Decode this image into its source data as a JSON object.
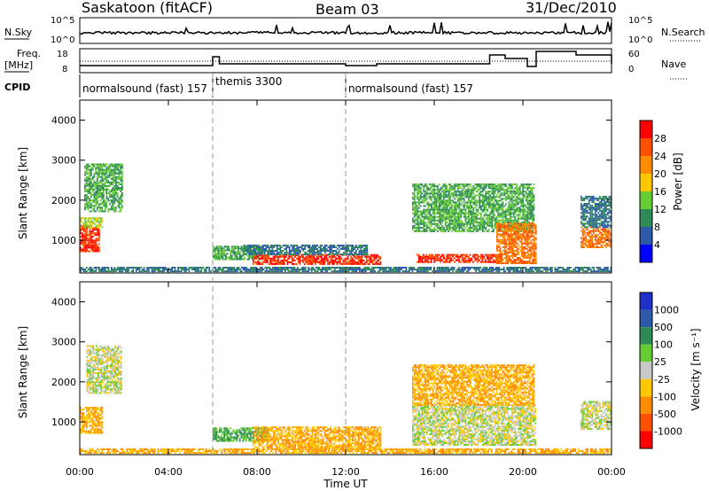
{
  "header": {
    "station": "Saskatoon (fitACF)",
    "beam": "Beam 03",
    "date": "31/Dec/2010"
  },
  "panels": {
    "noise": {
      "left_label": "N.Sky",
      "right_label": "N.Search",
      "left_ticks": [
        "10^5",
        "10^0"
      ],
      "right_ticks": [
        "10^5",
        "10^0"
      ]
    },
    "freq": {
      "left_label_top": "Freq.",
      "left_label_bottom": "[MHz]",
      "right_label": "Nave",
      "left_ticks": [
        "18",
        "8"
      ],
      "right_ticks": [
        "60",
        "0"
      ]
    },
    "cpid": {
      "label": "CPID",
      "segments": [
        {
          "name": "normalsound (fast) 157",
          "start": 0.0
        },
        {
          "name": "themis 3300",
          "start": 6.0
        },
        {
          "name": "normalsound (fast) 157",
          "start": 12.0
        }
      ]
    }
  },
  "axes": {
    "ylabel": "Slant Range [km]",
    "xlabel": "Time UT",
    "yticks": [
      "1000",
      "2000",
      "3000",
      "4000"
    ],
    "xticks": [
      "00:00",
      "04:00",
      "08:00",
      "12:00",
      "16:00",
      "20:00",
      "00:00"
    ]
  },
  "colorbars": {
    "power": {
      "label": "Power [dB]",
      "ticks": [
        "4",
        "8",
        "12",
        "16",
        "20",
        "24",
        "28"
      ],
      "colors": [
        "#0000ff",
        "#2c5aa8",
        "#2e8b57",
        "#66cc33",
        "#ffc800",
        "#ff8c00",
        "#ff5000",
        "#ff0000"
      ]
    },
    "velocity": {
      "label": "Velocity [m s⁻¹]",
      "ticks": [
        "1000",
        "500",
        "100",
        "25",
        "-25",
        "-100",
        "-500",
        "-1000"
      ],
      "colors": [
        "#1e32c8",
        "#2c5aa8",
        "#2e8b57",
        "#66cc33",
        "#c8c8c8",
        "#ffc800",
        "#ff8c00",
        "#ff5000",
        "#ff0000"
      ]
    }
  },
  "chart_data": {
    "type": "heatmap",
    "title": "Saskatoon (fitACF)",
    "xlabel": "Time UT",
    "ylabel": "Slant Range [km]",
    "xlim": [
      0,
      24
    ],
    "ylim": [
      180,
      4500
    ],
    "x_ticks": [
      0,
      4,
      8,
      12,
      16,
      20,
      24
    ],
    "y_ticks": [
      1000,
      2000,
      3000,
      4000
    ],
    "mode_changes_ut": [
      6.0,
      12.0
    ],
    "power_echo_regions": [
      {
        "t0": 0.0,
        "t1": 0.9,
        "r0": 700,
        "r1": 1350,
        "power_db": 28
      },
      {
        "t0": 0.0,
        "t1": 1.0,
        "r0": 1300,
        "r1": 1550,
        "power_db": 16
      },
      {
        "t0": 0.2,
        "t1": 1.9,
        "r0": 1700,
        "r1": 2900,
        "power_db": 12
      },
      {
        "t0": 0.0,
        "t1": 24.0,
        "r0": 200,
        "r1": 330,
        "power_db": 8
      },
      {
        "t0": 6.0,
        "t1": 8.2,
        "r0": 500,
        "r1": 850,
        "power_db": 12
      },
      {
        "t0": 7.8,
        "t1": 13.6,
        "r0": 380,
        "r1": 620,
        "power_db": 28
      },
      {
        "t0": 7.4,
        "t1": 13.0,
        "r0": 620,
        "r1": 850,
        "power_db": 8
      },
      {
        "t0": 15.2,
        "t1": 19.0,
        "r0": 430,
        "r1": 650,
        "power_db": 28
      },
      {
        "t0": 15.0,
        "t1": 20.5,
        "r0": 1200,
        "r1": 2400,
        "power_db": 12
      },
      {
        "t0": 18.8,
        "t1": 20.6,
        "r0": 400,
        "r1": 1400,
        "power_db": 24
      },
      {
        "t0": 22.6,
        "t1": 24.0,
        "r0": 800,
        "r1": 1300,
        "power_db": 24
      },
      {
        "t0": 22.6,
        "t1": 24.0,
        "r0": 1300,
        "r1": 2100,
        "power_db": 8
      }
    ],
    "velocity_echo_regions": [
      {
        "t0": 0.0,
        "t1": 1.0,
        "r0": 700,
        "r1": 1350,
        "velocity": -100
      },
      {
        "t0": 0.3,
        "t1": 1.9,
        "r0": 1700,
        "r1": 2900,
        "velocity": 0
      },
      {
        "t0": 0.0,
        "t1": 24.0,
        "r0": 200,
        "r1": 330,
        "velocity": -100
      },
      {
        "t0": 6.0,
        "t1": 8.5,
        "r0": 500,
        "r1": 850,
        "velocity": 100
      },
      {
        "t0": 7.8,
        "t1": 13.6,
        "r0": 300,
        "r1": 880,
        "velocity": -100
      },
      {
        "t0": 15.0,
        "t1": 20.6,
        "r0": 400,
        "r1": 1400,
        "velocity": 0
      },
      {
        "t0": 15.0,
        "t1": 20.5,
        "r0": 1400,
        "r1": 2400,
        "velocity": -100
      },
      {
        "t0": 22.6,
        "t1": 24.0,
        "r0": 800,
        "r1": 1500,
        "velocity": 0
      }
    ]
  }
}
